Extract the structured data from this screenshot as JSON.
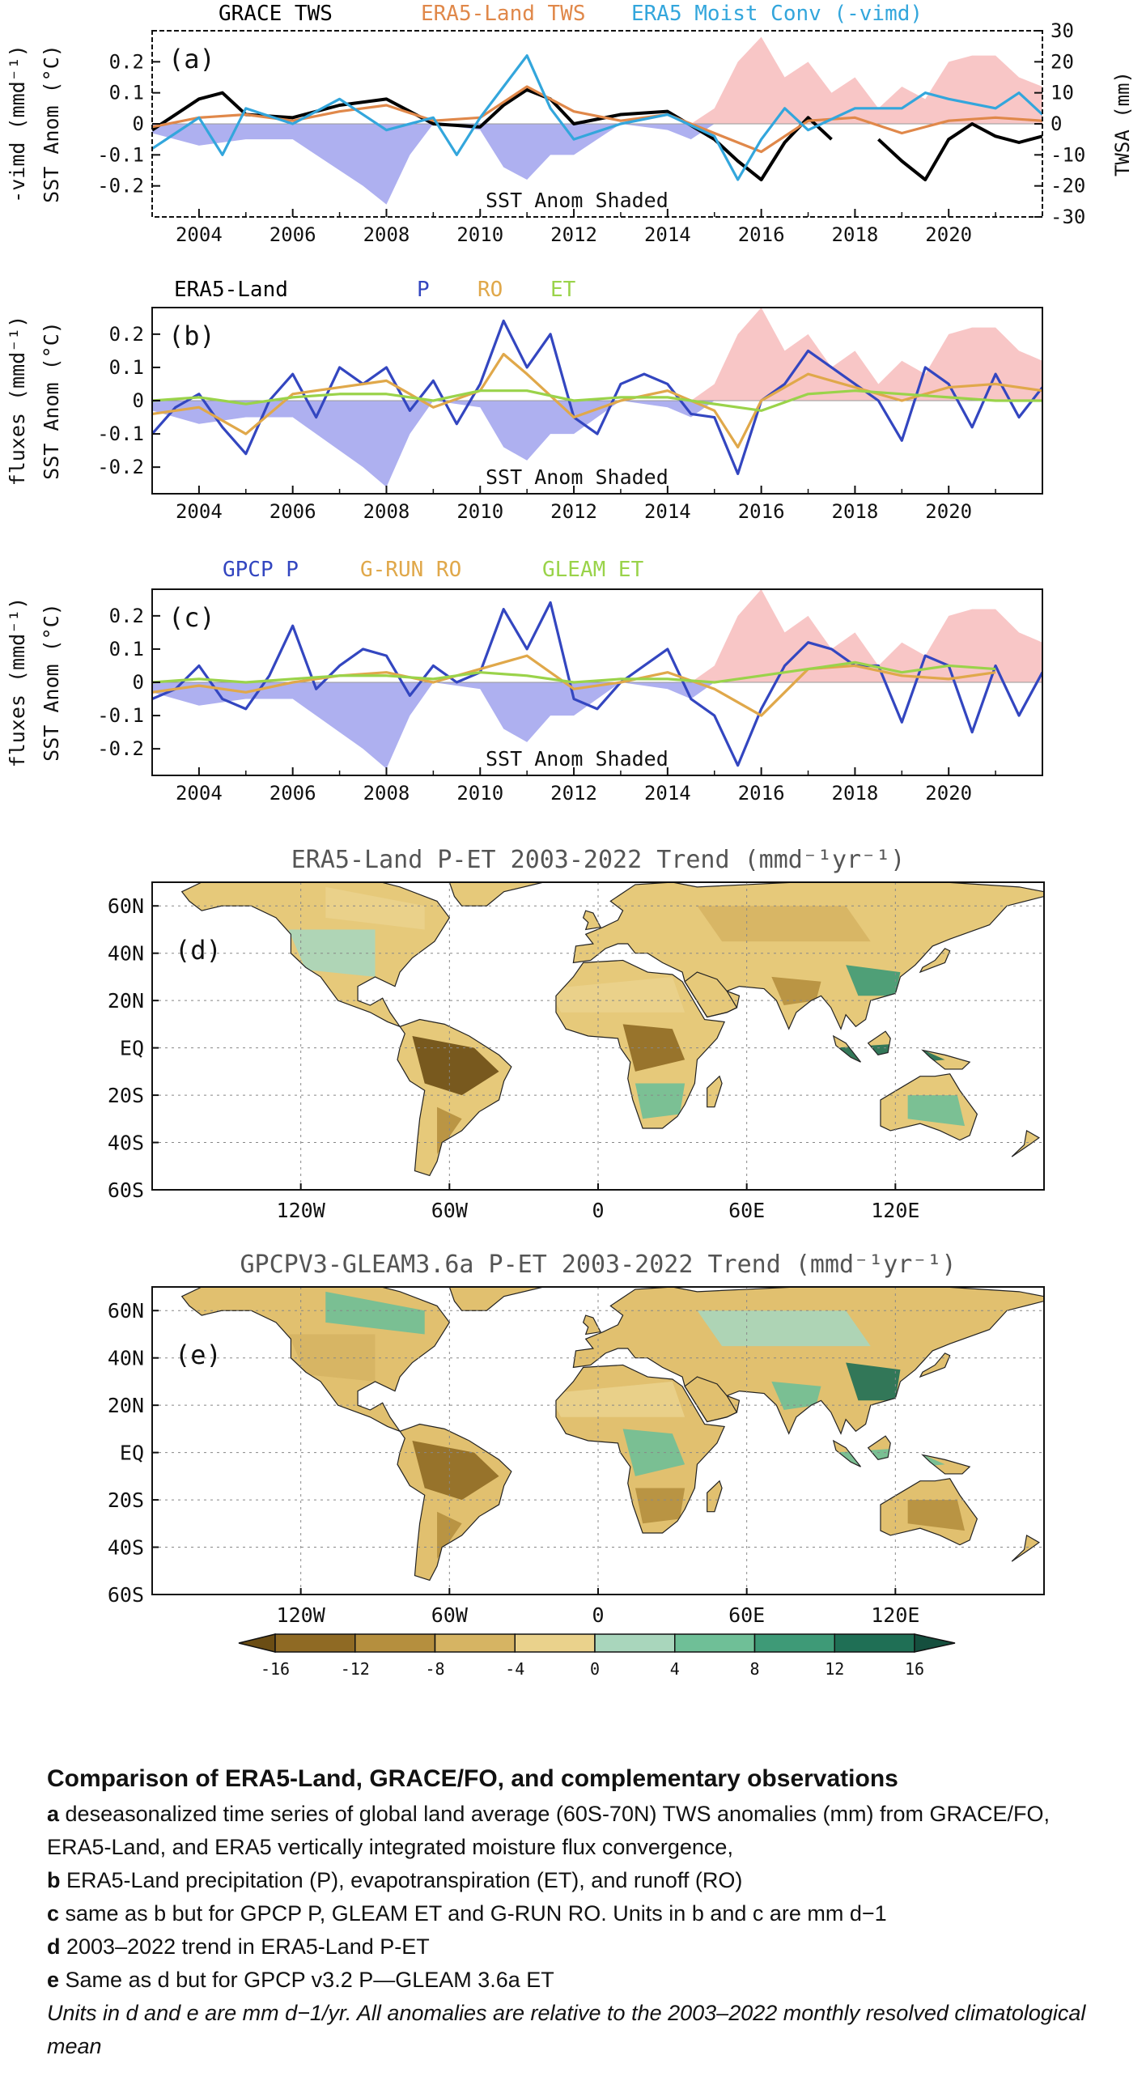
{
  "panels": [
    {
      "id": "a",
      "label": "(a)",
      "legend": [
        {
          "name": "GRACE TWS",
          "color": "#000000"
        },
        {
          "name": "ERA5-Land TWS",
          "color": "#e0884a"
        },
        {
          "name": "ERA5 Moist Conv (-vimd)",
          "color": "#33a6dc"
        }
      ],
      "ylabel_left": [
        "-vimd (mmd⁻¹)",
        "SST Anom (°C)"
      ],
      "ylabel_right": "TWSA (mm)",
      "ytick_labels_left": [
        "0.2",
        "0.1",
        "0",
        "-0.1",
        "-0.2"
      ],
      "ytick_labels_right": [
        "30",
        "20",
        "10",
        "0",
        "-10",
        "-20",
        "-30"
      ],
      "xtick_labels": [
        "2004",
        "2006",
        "2008",
        "2010",
        "2012",
        "2014",
        "2016",
        "2018",
        "2020"
      ],
      "annotation": "SST Anom Shaded"
    },
    {
      "id": "b",
      "label": "(b)",
      "legend": [
        {
          "name": "ERA5-Land",
          "color": "#000000"
        },
        {
          "name": "P",
          "color": "#3346c0"
        },
        {
          "name": "RO",
          "color": "#e0a84a"
        },
        {
          "name": "ET",
          "color": "#9ad34a"
        }
      ],
      "ylabel_left": [
        "fluxes (mmd⁻¹)",
        "SST Anom (°C)"
      ],
      "ytick_labels_left": [
        "0.2",
        "0.1",
        "0",
        "-0.1",
        "-0.2"
      ],
      "xtick_labels": [
        "2004",
        "2006",
        "2008",
        "2010",
        "2012",
        "2014",
        "2016",
        "2018",
        "2020"
      ],
      "annotation": "SST Anom Shaded"
    },
    {
      "id": "c",
      "label": "(c)",
      "legend": [
        {
          "name": "GPCP P",
          "color": "#3346c0"
        },
        {
          "name": "G-RUN RO",
          "color": "#e0a84a"
        },
        {
          "name": "GLEAM ET",
          "color": "#9ad34a"
        }
      ],
      "ylabel_left": [
        "fluxes (mmd⁻¹)",
        "SST Anom (°C)"
      ],
      "ytick_labels_left": [
        "0.2",
        "0.1",
        "0",
        "-0.1",
        "-0.2"
      ],
      "xtick_labels": [
        "2004",
        "2006",
        "2008",
        "2010",
        "2012",
        "2014",
        "2016",
        "2018",
        "2020"
      ],
      "annotation": "SST Anom Shaded"
    }
  ],
  "maps": [
    {
      "id": "d",
      "title": "ERA5-Land P-ET 2003-2022 Trend (mmd⁻¹yr⁻¹)",
      "label": "(d)",
      "lat_labels": [
        "60N",
        "40N",
        "20N",
        "EQ",
        "20S",
        "40S",
        "60S"
      ],
      "lon_labels": [
        "120W",
        "60W",
        "0",
        "60E",
        "120E"
      ]
    },
    {
      "id": "e",
      "title": "GPCPV3-GLEAM3.6a P-ET 2003-2022 Trend (mmd⁻¹yr⁻¹)",
      "label": "(e)",
      "lat_labels": [
        "60N",
        "40N",
        "20N",
        "EQ",
        "20S",
        "40S",
        "60S"
      ],
      "lon_labels": [
        "120W",
        "60W",
        "0",
        "60E",
        "120E"
      ]
    }
  ],
  "colorbar": {
    "labels": [
      "-16",
      "-12",
      "-8",
      "-4",
      "0",
      "4",
      "8",
      "12",
      "16"
    ],
    "colors": [
      "#6b4d14",
      "#8f6a24",
      "#b58f3e",
      "#d6b463",
      "#ead28c",
      "#a9d6bc",
      "#6fbf97",
      "#3e9a77",
      "#1f6f55",
      "#154f3e"
    ]
  },
  "chart_data": [
    {
      "type": "line",
      "panel": "a",
      "x_range": [
        2003,
        2022
      ],
      "ylim_left": [
        -0.3,
        0.3
      ],
      "ylim_right": [
        -30,
        30
      ],
      "series": [
        {
          "name": "GRACE TWS",
          "axis": "right",
          "x": [
            2003,
            2004,
            2004.5,
            2005,
            2006,
            2007,
            2008,
            2009,
            2010,
            2010.5,
            2011,
            2011.5,
            2012,
            2013,
            2014,
            2015,
            2015.5,
            2016,
            2016.5,
            2017,
            2017.5
          ],
          "values": [
            -2,
            8,
            10,
            3,
            2,
            6,
            8,
            0,
            -1,
            6,
            11,
            8,
            0,
            3,
            4,
            -5,
            -12,
            -18,
            -6,
            2,
            -5
          ]
        },
        {
          "name": "GRACE TWS",
          "axis": "right",
          "x": [
            2018.5,
            2019,
            2019.5,
            2020,
            2020.5,
            2021,
            2021.5,
            2022
          ],
          "values": [
            -5,
            -12,
            -18,
            -5,
            0,
            -4,
            -6,
            -4
          ]
        },
        {
          "name": "ERA5-Land TWS",
          "axis": "right",
          "x": [
            2003,
            2004,
            2005,
            2006,
            2007,
            2008,
            2009,
            2010,
            2011,
            2012,
            2013,
            2014,
            2015,
            2016,
            2017,
            2018,
            2019,
            2020,
            2021,
            2022
          ],
          "values": [
            -1,
            2,
            3,
            1,
            4,
            6,
            1,
            2,
            12,
            4,
            1,
            3,
            -3,
            -9,
            1,
            2,
            -3,
            1,
            2,
            1
          ]
        },
        {
          "name": "ERA5 Moist Conv (-vimd)",
          "axis": "left",
          "x": [
            2003,
            2003.5,
            2004,
            2004.5,
            2005,
            2006,
            2007,
            2008,
            2009,
            2009.5,
            2010,
            2010.5,
            2011,
            2011.5,
            2012,
            2013,
            2014,
            2015,
            2015.5,
            2016,
            2016.5,
            2017,
            2018,
            2019,
            2019.5,
            2020,
            2021,
            2021.5,
            2022
          ],
          "values": [
            -0.08,
            -0.03,
            0.02,
            -0.1,
            0.05,
            0,
            0.08,
            -0.02,
            0.02,
            -0.1,
            0.02,
            0.12,
            0.22,
            0.05,
            -0.05,
            0,
            0.03,
            -0.04,
            -0.18,
            -0.05,
            0.05,
            -0.02,
            0.05,
            0.05,
            0.1,
            0.08,
            0.05,
            0.1,
            0.03
          ]
        },
        {
          "name": "SST Anom",
          "axis": "left",
          "type": "area",
          "x": [
            2003,
            2004,
            2005,
            2006,
            2007,
            2007.5,
            2008,
            2008.5,
            2009,
            2010,
            2010.5,
            2011,
            2011.5,
            2012,
            2012.5,
            2013,
            2014,
            2014.5,
            2015,
            2015.5,
            2016,
            2016.5,
            2017,
            2017.5,
            2018,
            2018.5,
            2019,
            2019.5,
            2020,
            2020.5,
            2021,
            2021.5,
            2022
          ],
          "values": [
            -0.03,
            -0.07,
            -0.05,
            -0.05,
            -0.15,
            -0.2,
            -0.26,
            -0.1,
            0,
            -0.02,
            -0.14,
            -0.18,
            -0.1,
            -0.1,
            -0.05,
            0,
            -0.02,
            -0.05,
            0.05,
            0.2,
            0.28,
            0.15,
            0.2,
            0.1,
            0.15,
            0.05,
            0.12,
            0.08,
            0.2,
            0.22,
            0.22,
            0.15,
            0.12
          ]
        }
      ]
    },
    {
      "type": "line",
      "panel": "b",
      "x_range": [
        2003,
        2022
      ],
      "ylim": [
        -0.28,
        0.28
      ],
      "series": [
        {
          "name": "P",
          "x": [
            2003,
            2003.5,
            2004,
            2004.5,
            2005,
            2005.5,
            2006,
            2006.5,
            2007,
            2007.5,
            2008,
            2008.5,
            2009,
            2009.5,
            2010,
            2010.5,
            2011,
            2011.5,
            2012,
            2012.5,
            2013,
            2013.5,
            2014,
            2014.5,
            2015,
            2015.5,
            2016,
            2016.5,
            2017,
            2017.5,
            2018,
            2018.5,
            2019,
            2019.5,
            2020,
            2020.5,
            2021,
            2021.5,
            2022
          ],
          "values": [
            -0.1,
            -0.02,
            0.02,
            -0.08,
            -0.16,
            0,
            0.08,
            -0.05,
            0.1,
            0.05,
            0.1,
            -0.03,
            0.06,
            -0.07,
            0.05,
            0.24,
            0.1,
            0.2,
            -0.05,
            -0.1,
            0.05,
            0.08,
            0.05,
            -0.04,
            -0.05,
            -0.22,
            0,
            0.05,
            0.15,
            0.1,
            0.05,
            0,
            -0.12,
            0.1,
            0.05,
            -0.08,
            0.08,
            -0.05,
            0.04
          ]
        },
        {
          "name": "RO",
          "x": [
            2003,
            2004,
            2005,
            2006,
            2007,
            2008,
            2009,
            2010,
            2010.5,
            2011,
            2012,
            2013,
            2014,
            2015,
            2015.5,
            2016,
            2017,
            2018,
            2019,
            2020,
            2021,
            2022
          ],
          "values": [
            -0.04,
            -0.02,
            -0.1,
            0.02,
            0.04,
            0.06,
            -0.02,
            0.03,
            0.14,
            0.08,
            -0.05,
            0,
            0.03,
            -0.03,
            -0.14,
            0,
            0.08,
            0.04,
            0,
            0.04,
            0.05,
            0.03
          ]
        },
        {
          "name": "ET",
          "x": [
            2003,
            2004,
            2005,
            2006,
            2007,
            2008,
            2009,
            2010,
            2011,
            2012,
            2013,
            2014,
            2015,
            2016,
            2017,
            2018,
            2019,
            2020,
            2021,
            2022
          ],
          "values": [
            0,
            0.01,
            -0.01,
            0.01,
            0.02,
            0.02,
            0,
            0.03,
            0.03,
            0,
            0.01,
            0.01,
            -0.01,
            -0.03,
            0.02,
            0.03,
            0.02,
            0.01,
            0,
            0
          ]
        },
        {
          "name": "SST Anom",
          "type": "area",
          "x": [
            2003,
            2004,
            2005,
            2006,
            2007,
            2007.5,
            2008,
            2008.5,
            2009,
            2010,
            2010.5,
            2011,
            2011.5,
            2012,
            2012.5,
            2013,
            2014,
            2014.5,
            2015,
            2015.5,
            2016,
            2016.5,
            2017,
            2017.5,
            2018,
            2018.5,
            2019,
            2019.5,
            2020,
            2020.5,
            2021,
            2021.5,
            2022
          ],
          "values": [
            -0.03,
            -0.07,
            -0.05,
            -0.05,
            -0.15,
            -0.2,
            -0.26,
            -0.1,
            0,
            -0.02,
            -0.14,
            -0.18,
            -0.1,
            -0.1,
            -0.05,
            0,
            -0.02,
            -0.05,
            0.05,
            0.2,
            0.28,
            0.15,
            0.2,
            0.1,
            0.15,
            0.05,
            0.12,
            0.08,
            0.2,
            0.22,
            0.22,
            0.15,
            0.12
          ]
        }
      ]
    },
    {
      "type": "line",
      "panel": "c",
      "x_range": [
        2003,
        2022
      ],
      "ylim": [
        -0.28,
        0.28
      ],
      "series": [
        {
          "name": "GPCP P",
          "x": [
            2003,
            2003.5,
            2004,
            2004.5,
            2005,
            2005.5,
            2006,
            2006.5,
            2007,
            2007.5,
            2008,
            2008.5,
            2009,
            2009.5,
            2010,
            2010.5,
            2011,
            2011.5,
            2012,
            2012.5,
            2013,
            2013.5,
            2014,
            2014.5,
            2015,
            2015.5,
            2016,
            2016.5,
            2017,
            2017.5,
            2018,
            2018.5,
            2019,
            2019.5,
            2020,
            2020.5,
            2021,
            2021.5,
            2022
          ],
          "values": [
            -0.05,
            -0.02,
            0.05,
            -0.05,
            -0.08,
            0.02,
            0.17,
            -0.02,
            0.05,
            0.1,
            0.08,
            -0.04,
            0.05,
            0,
            0.03,
            0.22,
            0.1,
            0.24,
            -0.05,
            -0.08,
            0,
            0.05,
            0.1,
            -0.05,
            -0.1,
            -0.25,
            -0.08,
            0.05,
            0.12,
            0.1,
            0.05,
            0.05,
            -0.12,
            0.08,
            0.05,
            -0.15,
            0.05,
            -0.1,
            0.03
          ]
        },
        {
          "name": "G-RUN RO",
          "x": [
            2003,
            2004,
            2005,
            2006,
            2007,
            2008,
            2009,
            2010,
            2011,
            2012,
            2013,
            2014,
            2015,
            2016,
            2017,
            2018,
            2019,
            2020,
            2021
          ],
          "values": [
            -0.03,
            -0.01,
            -0.03,
            0,
            0.02,
            0.03,
            0,
            0.04,
            0.08,
            -0.02,
            0,
            0.03,
            -0.02,
            -0.1,
            0.04,
            0.05,
            0.02,
            0.01,
            0.03
          ]
        },
        {
          "name": "GLEAM ET",
          "x": [
            2003,
            2004,
            2005,
            2006,
            2007,
            2008,
            2009,
            2010,
            2011,
            2012,
            2013,
            2014,
            2015,
            2016,
            2017,
            2018,
            2019,
            2020,
            2021
          ],
          "values": [
            0,
            0.01,
            0,
            0.01,
            0.02,
            0.02,
            0.01,
            0.03,
            0.02,
            0,
            0.01,
            0.01,
            0,
            0.02,
            0.04,
            0.06,
            0.03,
            0.05,
            0.04
          ]
        },
        {
          "name": "SST Anom",
          "type": "area",
          "x": [
            2003,
            2004,
            2005,
            2006,
            2007,
            2007.5,
            2008,
            2008.5,
            2009,
            2010,
            2010.5,
            2011,
            2011.5,
            2012,
            2012.5,
            2013,
            2014,
            2014.5,
            2015,
            2015.5,
            2016,
            2016.5,
            2017,
            2017.5,
            2018,
            2018.5,
            2019,
            2019.5,
            2020,
            2020.5,
            2021,
            2021.5,
            2022
          ],
          "values": [
            -0.03,
            -0.07,
            -0.05,
            -0.05,
            -0.15,
            -0.2,
            -0.26,
            -0.1,
            0,
            -0.02,
            -0.14,
            -0.18,
            -0.1,
            -0.1,
            -0.05,
            0,
            -0.02,
            -0.05,
            0.05,
            0.2,
            0.28,
            0.15,
            0.2,
            0.1,
            0.15,
            0.05,
            0.12,
            0.08,
            0.2,
            0.22,
            0.22,
            0.15,
            0.12
          ]
        }
      ]
    }
  ],
  "caption": {
    "title": "Comparison of ERA5-Land, GRACE/FO, and complementary observations",
    "items": [
      {
        "key": "a",
        "text": " deseasonalized time series of global land average (60S-70N) TWS anomalies (mm) from GRACE/FO, ERA5-Land, and ERA5 vertically integrated moisture flux convergence,"
      },
      {
        "key": "b",
        "text": " ERA5-Land precipitation (P), evapotranspiration (ET), and runoff (RO)"
      },
      {
        "key": "c",
        "text": " same as b but for GPCP P, GLEAM ET and G-RUN RO. Units in b and c are mm d−1"
      },
      {
        "key": "d",
        "text": " 2003–2022 trend in ERA5-Land P-ET"
      },
      {
        "key": "e",
        "text": " Same as d but for GPCP v3.2 P—GLEAM 3.6a ET"
      }
    ],
    "note": "Units in d and e are mm d−1/yr. All anomalies are relative to the 2003–2022 monthly resolved climatological mean"
  }
}
